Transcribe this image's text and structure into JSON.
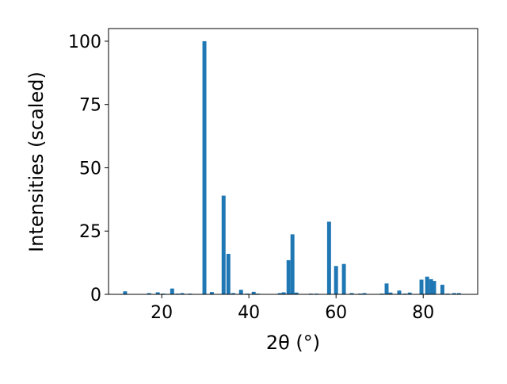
{
  "chart_data": {
    "type": "bar",
    "x_label": "2θ (°)",
    "y_label": "Intensities (scaled)",
    "color": "#1f77b4",
    "x": [
      11.6,
      17.1,
      19.1,
      20.4,
      22.4,
      23.6,
      24.7,
      26.5,
      29.8,
      31.5,
      34.2,
      35.3,
      36.4,
      38.2,
      39.6,
      41.1,
      42.0,
      47.1,
      48.0,
      49.1,
      50.0,
      50.9,
      54.2,
      55.5,
      58.4,
      60.0,
      61.8,
      63.6,
      65.5,
      66.5,
      70.5,
      71.6,
      72.5,
      74.5,
      75.8,
      76.9,
      79.6,
      80.9,
      81.8,
      82.5,
      84.4,
      85.6,
      87.1,
      88.2
    ],
    "values": [
      1.2,
      0.5,
      0.8,
      0.3,
      2.3,
      0.3,
      0.5,
      0.3,
      100,
      0.9,
      39,
      16,
      0.5,
      1.8,
      0.3,
      1.0,
      0.3,
      0.5,
      0.8,
      13.5,
      23.7,
      0.7,
      0.3,
      0.3,
      28.7,
      11.2,
      12,
      0.5,
      0.3,
      0.5,
      0.3,
      4.3,
      0.7,
      1.5,
      0.3,
      0.7,
      5.8,
      7,
      6,
      5.3,
      3.8,
      0.3,
      0.5,
      0.5
    ],
    "xlim": [
      7.8,
      92.5
    ],
    "xticks": [
      20,
      40,
      60,
      80
    ],
    "ylim": [
      0,
      105
    ],
    "yticks": [
      0,
      25,
      50,
      75,
      100
    ]
  }
}
